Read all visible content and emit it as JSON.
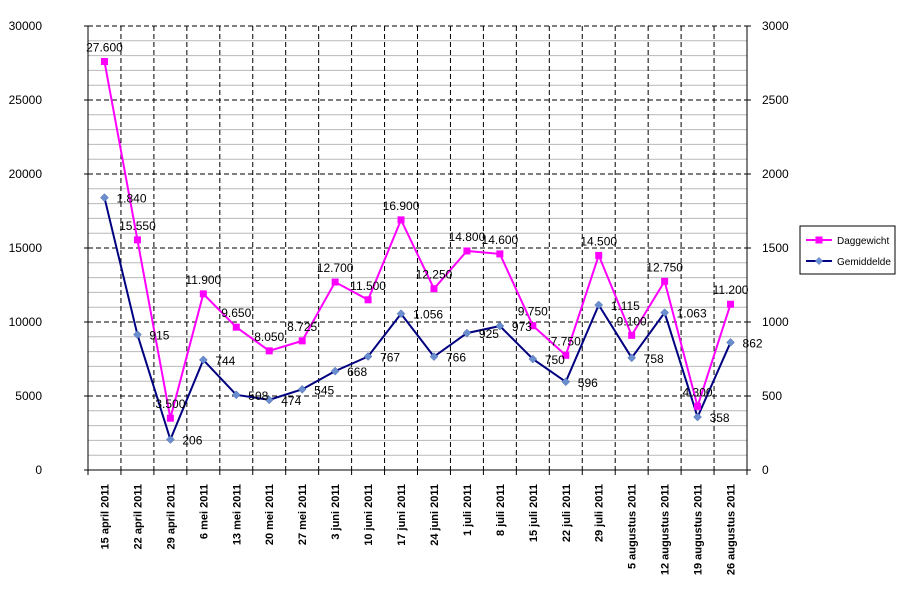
{
  "chart_data": {
    "type": "line",
    "categories": [
      "15 april 2011",
      "22 april 2011",
      "29 april 2011",
      "6 mei 2011",
      "13 mei 2011",
      "20 mei 2011",
      "27 mei 2011",
      "3 juni 2011",
      "10 juni 2011",
      "17 juni 2011",
      "24 juni 2011",
      "1 juli 2011",
      "8 juli 2011",
      "15 juli 2011",
      "22 juli 2011",
      "29 juli 2011",
      "5 augustus 2011",
      "12 augustus 2011",
      "19 augustus 2011",
      "26 augustus 2011"
    ],
    "series": [
      {
        "name": "Daggewicht",
        "axis": "left",
        "color": "#ff00ff",
        "marker": "square",
        "values": [
          27600,
          15550,
          3500,
          11900,
          9650,
          8050,
          8725,
          12700,
          11500,
          16900,
          12250,
          14800,
          14600,
          9750,
          7750,
          14500,
          9100,
          12750,
          4300,
          11200
        ],
        "labels": [
          "27.600",
          "15.550",
          "3.500",
          "11.900",
          "9.650",
          "8.050",
          "8.725",
          "12.700",
          "11.500",
          "16.900",
          "12.250",
          "14.800",
          "14.600",
          "9.750",
          "7.750",
          "14.500",
          "9.100",
          "12.750",
          "4.300",
          "11.200"
        ]
      },
      {
        "name": "Gemiddelde",
        "axis": "right",
        "color": "#000080",
        "marker": "diamond",
        "values": [
          1840,
          915,
          206,
          744,
          508,
          474,
          545,
          668,
          767,
          1056,
          766,
          925,
          973,
          750,
          596,
          1115,
          758,
          1063,
          358,
          862
        ],
        "labels": [
          "1.840",
          "915",
          "206",
          "744",
          "508",
          "474",
          "545",
          "668",
          "767",
          "1.056",
          "766",
          "925",
          "973",
          "750",
          "596",
          "1.115",
          "758",
          "1.063",
          "358",
          "862"
        ]
      }
    ],
    "ylim_left": [
      0,
      30000
    ],
    "ylim_right": [
      0,
      3000
    ],
    "yticks_left": [
      "0",
      "5000",
      "10000",
      "15000",
      "20000",
      "25000",
      "30000"
    ],
    "yticks_right": [
      "0",
      "500",
      "1000",
      "1500",
      "2000",
      "2500",
      "3000"
    ],
    "grid": true,
    "legend_position": "right",
    "title": "",
    "xlabel": "",
    "ylabel": ""
  }
}
